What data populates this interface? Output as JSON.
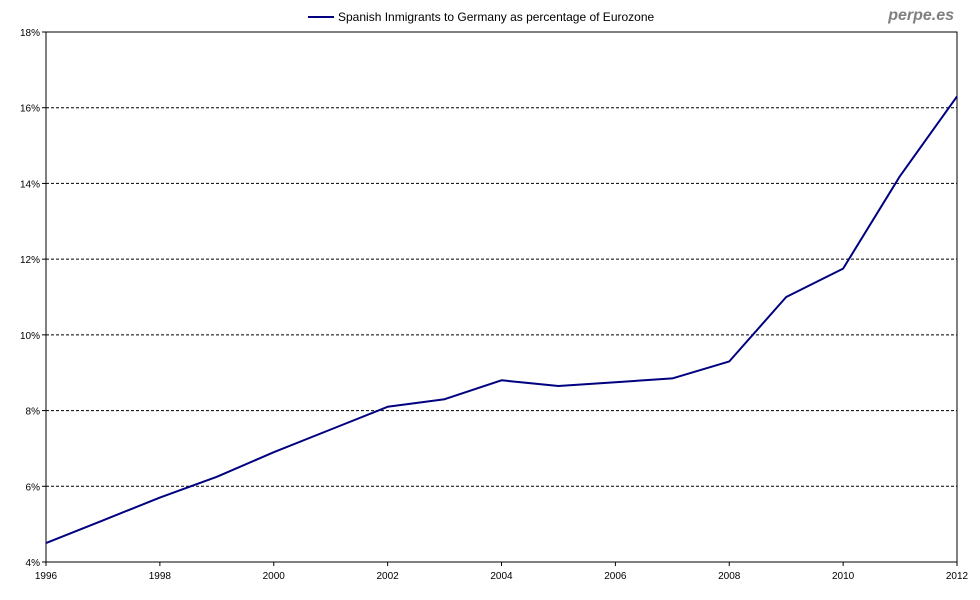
{
  "watermark": "perpe.es",
  "chart_data": {
    "type": "line",
    "title": "",
    "xlabel": "",
    "ylabel": "",
    "x": [
      1996,
      1997,
      1998,
      1999,
      2000,
      2001,
      2002,
      2003,
      2004,
      2005,
      2006,
      2007,
      2008,
      2009,
      2010,
      2011,
      2012
    ],
    "series": [
      {
        "name": "Spanish Inmigrants to Germany as percentage of Eurozone",
        "color": "#000080",
        "values": [
          4.5,
          5.1,
          5.7,
          6.25,
          6.9,
          7.5,
          8.1,
          8.3,
          8.8,
          8.65,
          8.75,
          8.85,
          9.3,
          11.0,
          11.75,
          14.2,
          16.3
        ]
      }
    ],
    "xlim": [
      1996,
      2012
    ],
    "ylim": [
      4,
      18
    ],
    "xticks": [
      "1996",
      "1998",
      "2000",
      "2002",
      "2004",
      "2006",
      "2008",
      "2010",
      "2012"
    ],
    "yticks": [
      "4%",
      "6%",
      "8%",
      "10%",
      "12%",
      "14%",
      "16%",
      "18%"
    ],
    "grid": "horizontal dashed",
    "legend_position": "top-center"
  }
}
